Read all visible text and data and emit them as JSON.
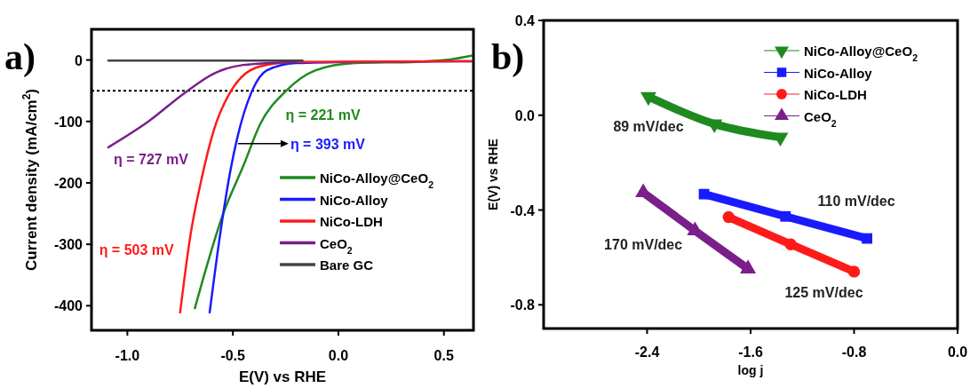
{
  "chart_data": [
    {
      "type": "line",
      "title": "a)",
      "xlabel": "E(V) vs RHE",
      "ylabel": "Current density (mA/cm$^{2}$)",
      "xlim": [
        -1.17,
        0.64
      ],
      "ylim": [
        -440,
        50
      ],
      "xticks": [
        {
          "value": -1,
          "label": "-1.0"
        },
        {
          "value": -0.5,
          "label": "-0.5"
        },
        {
          "value": 0,
          "label": "0.0"
        },
        {
          "value": 0.5,
          "label": "0.5"
        }
      ],
      "yticks": [
        0,
        -100,
        -200,
        -300,
        -400
      ],
      "legend": "bottom right",
      "marker": "none",
      "line_style": "solid",
      "ref_lines": [
        {
          "axis": "y",
          "value": -50,
          "color": "#000000",
          "line_style": "dotted"
        }
      ],
      "annotations": [
        "η = 221 mV",
        {
          "text": "η = 393 mV",
          "x": -0.48,
          "y": -136
        },
        "η = 503 mV",
        "η = 727 mV"
      ],
      "series": [
        {
          "name": "NiCo-Alloy@CeO$_{2}$",
          "color": "#1f8a1f",
          "x": [
            -0.68,
            -0.62,
            -0.55,
            -0.45,
            -0.37,
            -0.25,
            -0.11,
            0.08,
            0.37,
            0.51,
            0.63
          ],
          "values": [
            -404,
            -331,
            -254,
            -172,
            -104,
            -51,
            -17,
            -5,
            -3,
            0,
            7
          ]
        },
        {
          "name": "NiCo-Alloy",
          "color": "#1a1aff",
          "x": [
            -0.61,
            -0.56,
            -0.51,
            -0.48,
            -0.41,
            -0.34,
            -0.2,
            0.08,
            0.63
          ],
          "values": [
            -411,
            -283,
            -177,
            -128,
            -51,
            -17,
            -5,
            -3,
            -2
          ]
        },
        {
          "name": "NiCo-LDH",
          "color": "#ff1a1a",
          "x": [
            -0.75,
            -0.7,
            -0.65,
            -0.59,
            -0.51,
            -0.44,
            -0.34,
            -0.2,
            0.63
          ],
          "values": [
            -411,
            -283,
            -196,
            -114,
            -51,
            -22,
            -8,
            -3,
            -2
          ]
        },
        {
          "name": "CeO$_{2}$",
          "color": "#7a1f8a",
          "x": [
            -1.09,
            -0.9,
            -0.73,
            -0.59,
            -0.45,
            -0.2
          ],
          "values": [
            -142,
            -100,
            -54,
            -22,
            -8,
            -3
          ]
        },
        {
          "name": "Bare GC",
          "color": "#444444",
          "x": [
            -1.09,
            -0.17
          ],
          "values": [
            -1,
            -1
          ]
        }
      ]
    },
    {
      "type": "line",
      "title": "b)",
      "xlabel": "log j",
      "ylabel": "E(V) vs RHE",
      "xlim": [
        -3.2,
        0
      ],
      "ylim": [
        -0.9,
        0.4
      ],
      "xticks": [
        -2.4,
        -1.6,
        -0.8,
        {
          "value": 0,
          "label": "0.0"
        }
      ],
      "yticks": [
        0.4,
        {
          "value": 0,
          "label": "0.0"
        },
        -0.4,
        -0.8
      ],
      "legend": "top right",
      "line_style": "solid",
      "annotations": [
        "89 mV/dec",
        "110 mV/dec",
        "125 mV/dec",
        "170 mV/dec"
      ],
      "series": [
        {
          "name": "NiCo-Alloy@CeO$_{2}$",
          "color": "#1f8a1f",
          "marker": "triangle-down",
          "x": [
            -2.39,
            -1.88,
            -1.37
          ],
          "values": [
            0.078,
            -0.037,
            -0.093
          ]
        },
        {
          "name": "NiCo-Alloy",
          "color": "#1a1aff",
          "marker": "square",
          "x": [
            -1.96,
            -1.33,
            -0.7
          ],
          "values": [
            -0.333,
            -0.427,
            -0.52
          ]
        },
        {
          "name": "NiCo-LDH",
          "color": "#ff1a1a",
          "marker": "circle",
          "x": [
            -1.77,
            -1.29,
            -0.8
          ],
          "values": [
            -0.43,
            -0.545,
            -0.66
          ]
        },
        {
          "name": "CeO$_{2}$",
          "color": "#7a1f8a",
          "marker": "triangle",
          "x": [
            -2.43,
            -2.03,
            -1.62
          ],
          "values": [
            -0.326,
            -0.487,
            -0.648
          ]
        }
      ]
    }
  ]
}
